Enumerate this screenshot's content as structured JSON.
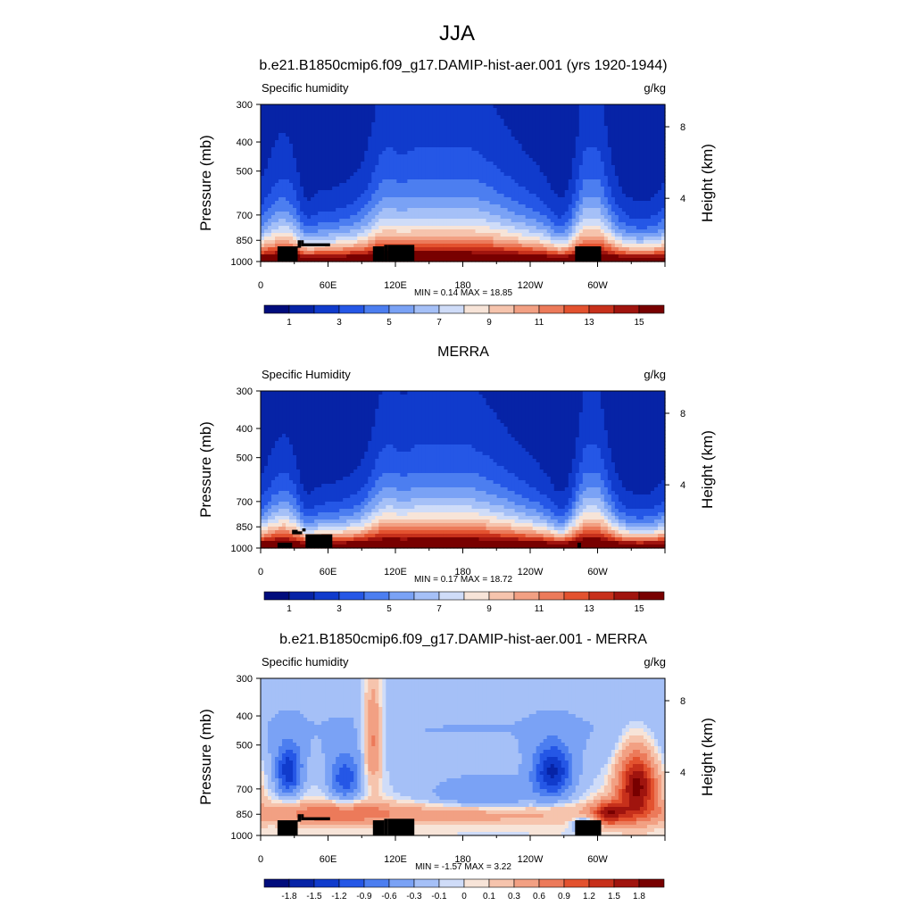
{
  "figure_title": "JJA",
  "chart_data": [
    {
      "type": "heatmap",
      "title": "b.e21.B1850cmip6.f09_g17.DAMIP-hist-aer.001 (yrs 1920-1944)",
      "left_label": "Specific humidity",
      "units": "g/kg",
      "ylabel": "Pressure (mb)",
      "y2label": "Height (km)",
      "x_ticks": [
        "0",
        "60E",
        "120E",
        "180",
        "120W",
        "60W"
      ],
      "x_tick_lon": [
        0,
        60,
        120,
        180,
        240,
        300
      ],
      "xlim": [
        0,
        360
      ],
      "y_ticks": [
        "300",
        "400",
        "500",
        "700",
        "850",
        "1000"
      ],
      "y_tick_p": [
        300,
        400,
        500,
        700,
        850,
        1000
      ],
      "ylim": [
        300,
        1000
      ],
      "y_scale": "log",
      "y2_ticks": [
        "8",
        "4"
      ],
      "y2_tick_p": [
        356,
        616
      ],
      "stats": "MIN =   0.14  MAX =  18.85",
      "colorbar": {
        "labels": [
          "1",
          "3",
          "5",
          "7",
          "9",
          "11",
          "13",
          "15"
        ],
        "colors": [
          "#000c7c",
          "#0623a6",
          "#103bcc",
          "#2557e6",
          "#4c7ef0",
          "#7aa2f5",
          "#a5c0f7",
          "#cfdcf8",
          "#f7e4d8",
          "#f6c4ad",
          "#f2a083",
          "#ec7a5a",
          "#e3522f",
          "#c7301b",
          "#a0140e",
          "#780000"
        ]
      },
      "field": "q_model",
      "terrain": [
        [
          15,
          1000,
          890
        ],
        [
          33,
          900,
          850
        ],
        [
          36,
          890,
          850
        ],
        [
          38,
          890,
          870
        ],
        [
          100,
          1000,
          890
        ],
        [
          110,
          1000,
          880
        ],
        [
          113,
          1000,
          880
        ],
        [
          280,
          1000,
          890
        ],
        [
          300,
          1000,
          890
        ]
      ]
    },
    {
      "type": "heatmap",
      "title": "MERRA",
      "left_label": "Specific Humidity",
      "units": "g/kg",
      "ylabel": "Pressure (mb)",
      "y2label": "Height (km)",
      "x_ticks": [
        "0",
        "60E",
        "120E",
        "180",
        "120W",
        "60W"
      ],
      "x_tick_lon": [
        0,
        60,
        120,
        180,
        240,
        300
      ],
      "xlim": [
        0,
        360
      ],
      "y_ticks": [
        "300",
        "400",
        "500",
        "700",
        "850",
        "1000"
      ],
      "y_tick_p": [
        300,
        400,
        500,
        700,
        850,
        1000
      ],
      "ylim": [
        300,
        1000
      ],
      "y_scale": "log",
      "y2_ticks": [
        "8",
        "4"
      ],
      "y2_tick_p": [
        356,
        616
      ],
      "stats": "MIN =   0.17  MAX =  18.72",
      "colorbar": {
        "labels": [
          "1",
          "3",
          "5",
          "7",
          "9",
          "11",
          "13",
          "15"
        ],
        "colors": [
          "#000c7c",
          "#0623a6",
          "#103bcc",
          "#2557e6",
          "#4c7ef0",
          "#7aa2f5",
          "#a5c0f7",
          "#cfdcf8",
          "#f7e4d8",
          "#f6c4ad",
          "#f2a083",
          "#ec7a5a",
          "#e3522f",
          "#c7301b",
          "#a0140e",
          "#780000"
        ]
      },
      "field": "q_obs",
      "terrain": [
        [
          15,
          1000,
          960
        ],
        [
          28,
          900,
          870
        ],
        [
          33,
          900,
          880
        ],
        [
          37,
          880,
          860
        ],
        [
          40,
          1000,
          900
        ],
        [
          282,
          1000,
          960
        ]
      ]
    },
    {
      "type": "heatmap",
      "title": "b.e21.B1850cmip6.f09_g17.DAMIP-hist-aer.001 - MERRA",
      "left_label": "Specific humidity",
      "units": "g/kg",
      "ylabel": "Pressure (mb)",
      "y2label": "Height (km)",
      "x_ticks": [
        "0",
        "60E",
        "120E",
        "180",
        "120W",
        "60W"
      ],
      "x_tick_lon": [
        0,
        60,
        120,
        180,
        240,
        300
      ],
      "xlim": [
        0,
        360
      ],
      "y_ticks": [
        "300",
        "400",
        "500",
        "700",
        "850",
        "1000"
      ],
      "y_tick_p": [
        300,
        400,
        500,
        700,
        850,
        1000
      ],
      "ylim": [
        300,
        1000
      ],
      "y_scale": "log",
      "y2_ticks": [
        "8",
        "4"
      ],
      "y2_tick_p": [
        356,
        616
      ],
      "stats": "MIN =  -1.57  MAX =   3.22",
      "colorbar": {
        "labels": [
          "-1.8",
          "-1.5",
          "-1.2",
          "-0.9",
          "-0.6",
          "-0.3",
          "-0.1",
          "0",
          "0.1",
          "0.3",
          "0.6",
          "0.9",
          "1.2",
          "1.5",
          "1.8"
        ],
        "colors": [
          "#000c7c",
          "#0623a6",
          "#103bcc",
          "#2557e6",
          "#4c7ef0",
          "#7aa2f5",
          "#a5c0f7",
          "#cfdcf8",
          "#f7e4d8",
          "#f6c4ad",
          "#f2a083",
          "#ec7a5a",
          "#e3522f",
          "#c7301b",
          "#a0140e",
          "#780000"
        ]
      },
      "field": "q_diff",
      "terrain": [
        [
          15,
          1000,
          890
        ],
        [
          33,
          900,
          850
        ],
        [
          36,
          890,
          850
        ],
        [
          38,
          890,
          870
        ],
        [
          100,
          1000,
          890
        ],
        [
          110,
          1000,
          880
        ],
        [
          113,
          1000,
          880
        ],
        [
          280,
          1000,
          890
        ],
        [
          300,
          1000,
          890
        ]
      ]
    }
  ]
}
